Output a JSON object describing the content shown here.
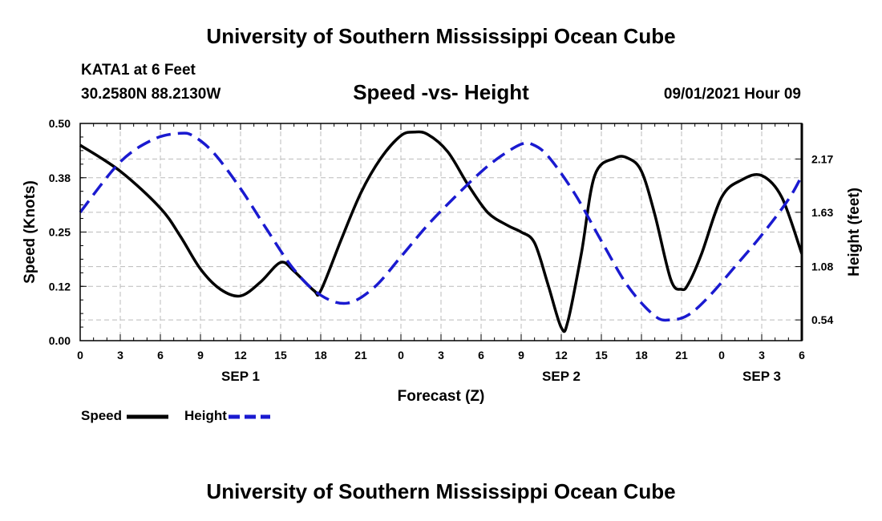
{
  "header": {
    "title_top": "University of Southern Mississippi Ocean Cube",
    "station": "KATA1 at 6 Feet",
    "latlon": "30.2580N  88.2130W",
    "chart_title": "Speed -vs- Height",
    "timestamp": "09/01/2021 Hour 09",
    "title_bottom": "University of Southern Mississippi Ocean Cube"
  },
  "legend": {
    "speed_label": "Speed",
    "height_label": "Height"
  },
  "colors": {
    "speed": "#000000",
    "height": "#1a1ad0",
    "grid": "#bbbbbb"
  },
  "chart_data": {
    "type": "line",
    "title": "Speed -vs- Height",
    "xlabel": "Forecast (Z)",
    "ylabel": "Speed (Knots)",
    "y2label": "Height (feet)",
    "x_unit": "hours from 00Z Sep 1",
    "xlim": [
      0,
      54
    ],
    "ylim": [
      0,
      0.5
    ],
    "y2lim": [
      0.33,
      2.53
    ],
    "x_ticks": [
      0,
      3,
      6,
      9,
      12,
      15,
      18,
      21,
      24,
      27,
      30,
      33,
      36,
      39,
      42,
      45,
      48,
      51,
      54
    ],
    "x_tick_labels": [
      "0",
      "3",
      "6",
      "9",
      "12",
      "15",
      "18",
      "21",
      "0",
      "3",
      "6",
      "9",
      "12",
      "15",
      "18",
      "21",
      "0",
      "3",
      "6"
    ],
    "day_labels": [
      {
        "x": 12,
        "label": "SEP 1"
      },
      {
        "x": 36,
        "label": "SEP 2"
      },
      {
        "x": 51,
        "label": "SEP 3"
      }
    ],
    "y_ticks": [
      0.0,
      0.125,
      0.25,
      0.375,
      0.5
    ],
    "y_tick_labels": [
      "0.00",
      "0.12",
      "0.25",
      "0.38",
      "0.50"
    ],
    "y2_ticks": [
      0.54,
      1.08,
      1.63,
      2.17
    ],
    "y2_tick_labels": [
      "0.54",
      "1.08",
      "1.63",
      "2.17"
    ],
    "grid": true,
    "series": [
      {
        "name": "Speed",
        "axis": "left",
        "style": "solid",
        "x": [
          0,
          3,
          6,
          7.5,
          9,
          10.5,
          12,
          13.5,
          15,
          16,
          17.5,
          18,
          19.5,
          21,
          22.5,
          24,
          25,
          26,
          27.5,
          29,
          30.5,
          32,
          33,
          34,
          35,
          36,
          36.5,
          37.5,
          38.5,
          40,
          41,
          42,
          43,
          44.2,
          45,
          45.5,
          46.5,
          48,
          49.5,
          51,
          52.5,
          54
        ],
        "values": [
          0.45,
          0.39,
          0.305,
          0.24,
          0.165,
          0.118,
          0.103,
          0.135,
          0.18,
          0.16,
          0.115,
          0.115,
          0.23,
          0.34,
          0.42,
          0.472,
          0.48,
          0.475,
          0.435,
          0.36,
          0.295,
          0.265,
          0.25,
          0.225,
          0.13,
          0.03,
          0.045,
          0.2,
          0.38,
          0.42,
          0.42,
          0.39,
          0.29,
          0.14,
          0.118,
          0.13,
          0.2,
          0.33,
          0.37,
          0.38,
          0.33,
          0.2
        ]
      },
      {
        "name": "Height",
        "axis": "right",
        "style": "dashed",
        "x": [
          0,
          3,
          5.5,
          7.5,
          8.5,
          10,
          12,
          14,
          16,
          18,
          20,
          22,
          24,
          26,
          28,
          30,
          31.5,
          33,
          33.8,
          35,
          37,
          39,
          41,
          43,
          44.2,
          45.5,
          47,
          49,
          51,
          53,
          54
        ],
        "values": [
          1.63,
          2.14,
          2.37,
          2.43,
          2.4,
          2.23,
          1.87,
          1.45,
          1.05,
          0.79,
          0.71,
          0.87,
          1.18,
          1.5,
          1.78,
          2.04,
          2.2,
          2.32,
          2.32,
          2.2,
          1.82,
          1.34,
          0.88,
          0.58,
          0.54,
          0.59,
          0.77,
          1.08,
          1.4,
          1.76,
          2.0
        ]
      }
    ]
  }
}
